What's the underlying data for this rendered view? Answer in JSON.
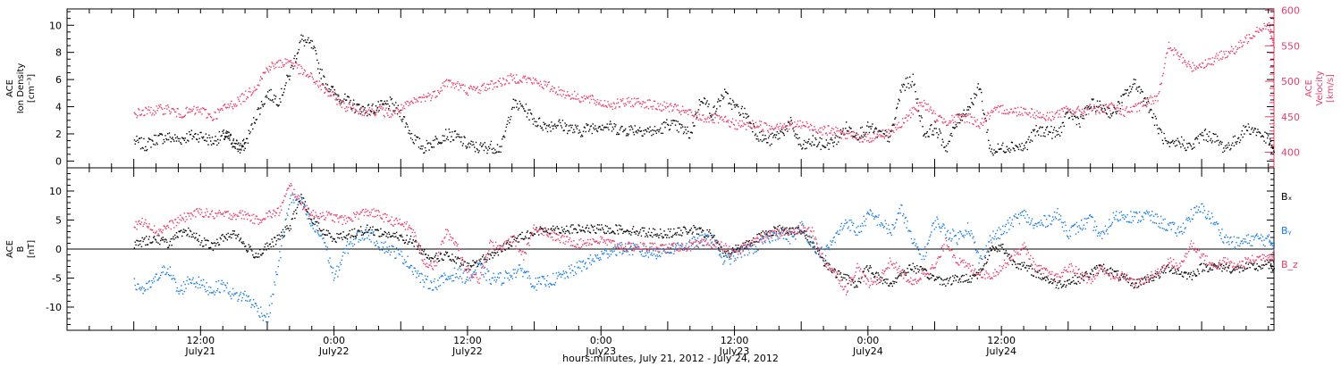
{
  "chart_data": [
    {
      "type": "scatter",
      "panel": "top",
      "ylabel_left": [
        "ACE",
        "Ion Density",
        "[cm⁻³]"
      ],
      "ylabel_right": [
        "ACE",
        "Velocity",
        "[km/s]"
      ],
      "ylim_left": [
        -0.5,
        11.2
      ],
      "ylim_right": [
        378,
        602
      ],
      "left_ticks": [
        "0",
        "2",
        "4",
        "6",
        "8",
        "10"
      ],
      "right_ticks": [
        "400",
        "450",
        "500",
        "550",
        "600"
      ],
      "colors": {
        "density": "#000000",
        "velocity": "#e8406a"
      },
      "series": [
        {
          "axis": "left",
          "color_key": "density",
          "x": [
            0,
            1,
            2,
            3,
            4,
            5,
            6,
            7,
            8,
            8.5,
            9,
            9.5,
            10,
            11,
            12,
            13,
            14,
            15,
            16,
            17,
            18,
            19,
            20,
            21,
            22,
            23,
            24,
            25,
            26,
            27,
            28,
            29,
            30,
            31,
            32,
            33,
            34,
            35,
            36,
            37,
            38,
            39,
            40,
            41,
            42,
            43,
            44,
            45,
            46,
            47,
            48,
            49,
            50,
            51,
            52,
            53,
            54,
            55,
            56,
            57,
            58,
            59,
            60,
            61,
            62,
            63,
            64,
            65,
            66,
            67,
            68,
            69,
            70,
            71,
            72,
            73,
            74,
            75,
            76,
            77,
            78,
            79,
            80,
            81,
            82,
            83,
            84,
            85,
            86,
            87,
            88,
            89,
            90,
            91,
            92,
            93,
            94,
            95,
            96,
            97,
            98,
            99,
            100,
            101,
            102,
            102.5
          ],
          "y": [
            1.5,
            1.2,
            1.7,
            1.8,
            1.6,
            1.9,
            1.9,
            1.5,
            1.9,
            1.8,
            1.3,
            1.0,
            1.3,
            3.5,
            5.0,
            4.5,
            6.5,
            9.0,
            8.5,
            6.0,
            5.0,
            4.5,
            4.0,
            3.8,
            4.0,
            4.3,
            3.5,
            1.8,
            1.0,
            1.5,
            2.0,
            1.8,
            1.2,
            1.0,
            1.1,
            1.0,
            4.2,
            4.0,
            3.0,
            2.6,
            2.8,
            2.5,
            2.2,
            2.5,
            2.7,
            2.5,
            2.3,
            2.4,
            2.3,
            2.2,
            2.8,
            2.5,
            2.0,
            4.8,
            3.5,
            5.0,
            4.0,
            3.5,
            2.0,
            1.5,
            2.0,
            2.8,
            1.0,
            1.5,
            1.2,
            1.5,
            2.5,
            2.0,
            2.5,
            2.0,
            1.8,
            5.5,
            6.0,
            2.0,
            2.5,
            1.0,
            3.0,
            4.0,
            5.5,
            0.7,
            1.0,
            1.2,
            1.0,
            2.2,
            2.3,
            2.0,
            3.5,
            3.0,
            4.2,
            4.0,
            3.5,
            4.8,
            5.8,
            4.5,
            2.5,
            1.0,
            1.5,
            1.0,
            2.0,
            1.8,
            1.0,
            1.5,
            2.5,
            2.2,
            1.5,
            0.5
          ]
        },
        {
          "axis": "right",
          "color_key": "velocity",
          "x": [
            0,
            1,
            2,
            3,
            4,
            5,
            6,
            7,
            8,
            9,
            10,
            11,
            12,
            13,
            14,
            15,
            16,
            17,
            18,
            19,
            20,
            21,
            22,
            23,
            24,
            25,
            26,
            27,
            28,
            29,
            30,
            31,
            32,
            33,
            34,
            35,
            36,
            37,
            38,
            39,
            40,
            41,
            42,
            43,
            44,
            45,
            46,
            47,
            48,
            49,
            50,
            51,
            52,
            53,
            54,
            55,
            56,
            57,
            58,
            59,
            60,
            61,
            62,
            63,
            64,
            65,
            66,
            67,
            68,
            69,
            70,
            71,
            72,
            73,
            74,
            75,
            76,
            77,
            78,
            79,
            80,
            81,
            82,
            83,
            84,
            85,
            86,
            87,
            88,
            89,
            90,
            91,
            92,
            93,
            94,
            95,
            96,
            97,
            98,
            99,
            100,
            101,
            102,
            102.5
          ],
          "y": [
            455,
            458,
            460,
            462,
            455,
            458,
            460,
            450,
            462,
            470,
            480,
            495,
            520,
            525,
            530,
            515,
            505,
            490,
            478,
            465,
            462,
            458,
            460,
            455,
            462,
            470,
            478,
            482,
            500,
            495,
            488,
            490,
            495,
            500,
            505,
            505,
            500,
            495,
            488,
            482,
            478,
            475,
            470,
            468,
            470,
            472,
            470,
            465,
            465,
            460,
            455,
            450,
            448,
            445,
            440,
            438,
            440,
            435,
            440,
            438,
            440,
            435,
            432,
            430,
            425,
            422,
            420,
            425,
            430,
            440,
            460,
            470,
            450,
            445,
            448,
            450,
            440,
            455,
            462,
            458,
            460,
            455,
            450,
            455,
            460,
            458,
            462,
            460,
            465,
            458,
            462,
            470,
            480,
            550,
            535,
            520,
            525,
            530,
            540,
            545,
            560,
            575,
            580,
            545
          ]
        }
      ]
    },
    {
      "type": "scatter",
      "panel": "bottom",
      "ylabel_left": [
        "ACE",
        "B",
        "[nT]"
      ],
      "ylim": [
        -14,
        14
      ],
      "left_ticks": [
        "-10",
        "-5",
        "0",
        "5",
        "10"
      ],
      "colors": {
        "Bx": "#000000",
        "By": "#1a7ee0",
        "Bz": "#e8406a"
      },
      "legend_labels": [
        "Bₓ",
        "Bᵧ",
        "B_z"
      ],
      "series": [
        {
          "name": "Bx",
          "color_key": "Bx",
          "x": [
            0,
            1,
            2,
            3,
            4,
            5,
            6,
            7,
            8,
            9,
            10,
            11,
            12,
            13,
            14,
            15,
            16,
            17,
            18,
            19,
            20,
            21,
            22,
            23,
            24,
            25,
            26,
            27,
            28,
            29,
            30,
            31,
            32,
            33,
            34,
            35,
            36,
            37,
            38,
            39,
            40,
            41,
            42,
            43,
            44,
            45,
            46,
            47,
            48,
            49,
            50,
            51,
            52,
            53,
            54,
            55,
            56,
            57,
            58,
            59,
            60,
            61,
            62,
            63,
            64,
            65,
            66,
            67,
            68,
            69,
            70,
            71,
            72,
            73,
            74,
            75,
            76,
            77,
            78,
            79,
            80,
            81,
            82,
            83,
            84,
            85,
            86,
            87,
            88,
            89,
            90,
            91,
            92,
            93,
            94,
            95,
            96,
            97,
            98,
            99,
            100,
            101,
            102,
            102.5
          ],
          "y": [
            1.0,
            1.5,
            2.0,
            1.0,
            2.5,
            3.0,
            1.5,
            0.5,
            2.0,
            3.0,
            0.5,
            -1.0,
            0.5,
            2.0,
            4.0,
            9.0,
            5.0,
            3.0,
            2.0,
            2.5,
            3.0,
            3.5,
            3.0,
            2.5,
            2.0,
            1.5,
            -0.5,
            -1.5,
            -1.0,
            -2.0,
            -3.0,
            -2.0,
            -1.0,
            0.0,
            1.5,
            2.5,
            3.0,
            3.5,
            3.5,
            3.5,
            3.5,
            3.5,
            3.5,
            3.5,
            3.5,
            3.2,
            3.0,
            2.8,
            2.8,
            3.0,
            3.5,
            3.0,
            2.5,
            -1.0,
            0.0,
            1.0,
            2.0,
            3.0,
            3.5,
            3.5,
            3.0,
            1.0,
            -2.0,
            -4.0,
            -5.0,
            -6.0,
            -3.0,
            -5.0,
            -6.0,
            -4.0,
            -3.0,
            -4.0,
            -5.0,
            -5.5,
            -5.0,
            -5.0,
            -4.0,
            0.0,
            0.5,
            -2.0,
            -3.0,
            -4.0,
            -5.0,
            -6.0,
            -5.5,
            -5.0,
            -4.0,
            -3.0,
            -4.0,
            -5.0,
            -6.0,
            -5.0,
            -4.5,
            -3.0,
            -4.0,
            -4.5,
            -3.0,
            -3.0,
            -3.0,
            -3.5,
            -3.0,
            -3.0,
            -2.5,
            -3.0
          ]
        },
        {
          "name": "By",
          "color_key": "By",
          "x": [
            0,
            1,
            2,
            3,
            4,
            5,
            6,
            7,
            8,
            9,
            10,
            11,
            12,
            13,
            14,
            15,
            16,
            17,
            18,
            19,
            20,
            21,
            22,
            23,
            24,
            25,
            26,
            27,
            28,
            29,
            30,
            31,
            32,
            33,
            34,
            35,
            36,
            37,
            38,
            39,
            40,
            41,
            42,
            43,
            44,
            45,
            46,
            47,
            48,
            49,
            50,
            51,
            52,
            53,
            54,
            55,
            56,
            57,
            58,
            59,
            60,
            61,
            62,
            63,
            64,
            65,
            66,
            67,
            68,
            69,
            70,
            71,
            72,
            73,
            74,
            75,
            76,
            77,
            78,
            79,
            80,
            81,
            82,
            83,
            84,
            85,
            86,
            87,
            88,
            89,
            90,
            91,
            92,
            93,
            94,
            95,
            96,
            97,
            98,
            99,
            100,
            101,
            102,
            102.5
          ],
          "y": [
            -6.0,
            -7.0,
            -5.0,
            -3.0,
            -7.5,
            -5.0,
            -6.0,
            -7.0,
            -6.0,
            -8.0,
            -8.0,
            -10.0,
            -12.0,
            -2.0,
            9.0,
            8.0,
            4.0,
            2.0,
            -5.0,
            0.0,
            2.0,
            3.0,
            1.0,
            0.0,
            -1.0,
            -3.0,
            -5.5,
            -6.0,
            -5.0,
            -4.0,
            -5.0,
            -3.0,
            -5.0,
            -5.0,
            -4.0,
            -3.5,
            -6.0,
            -5.5,
            -5.0,
            -4.0,
            -3.0,
            -2.0,
            -1.0,
            0.0,
            0.2,
            0.0,
            -0.5,
            -0.5,
            0.0,
            0.5,
            1.0,
            1.5,
            2.0,
            -2.0,
            -1.0,
            0.0,
            0.5,
            2.0,
            3.0,
            2.0,
            4.0,
            1.0,
            -1.0,
            2.0,
            5.0,
            3.0,
            6.0,
            5.0,
            3.0,
            7.0,
            1.0,
            -1.0,
            5.0,
            3.0,
            2.0,
            4.0,
            -2.0,
            2.0,
            3.0,
            5.0,
            6.0,
            4.0,
            5.0,
            6.0,
            3.0,
            4.0,
            5.0,
            2.0,
            5.5,
            6.0,
            5.5,
            6.0,
            5.0,
            4.0,
            3.0,
            6.0,
            7.0,
            5.0,
            2.0,
            1.0,
            1.5,
            2.0,
            1.5,
            1.0
          ]
        },
        {
          "name": "Bz",
          "color_key": "Bz",
          "x": [
            0,
            1,
            2,
            3,
            4,
            5,
            6,
            7,
            8,
            9,
            10,
            11,
            12,
            13,
            14,
            15,
            16,
            17,
            18,
            19,
            20,
            21,
            22,
            23,
            24,
            25,
            26,
            27,
            28,
            29,
            30,
            31,
            32,
            33,
            34,
            35,
            36,
            37,
            38,
            39,
            40,
            41,
            42,
            43,
            44,
            45,
            46,
            47,
            48,
            49,
            50,
            51,
            52,
            53,
            54,
            55,
            56,
            57,
            58,
            59,
            60,
            61,
            62,
            63,
            64,
            65,
            66,
            67,
            68,
            69,
            70,
            71,
            72,
            73,
            74,
            75,
            76,
            77,
            78,
            79,
            80,
            81,
            82,
            83,
            84,
            85,
            86,
            87,
            88,
            89,
            90,
            91,
            92,
            93,
            94,
            95,
            96,
            97,
            98,
            99,
            100,
            101,
            102,
            102.5
          ],
          "y": [
            4.0,
            5.0,
            3.0,
            4.0,
            5.0,
            6.0,
            6.5,
            6.0,
            6.0,
            6.0,
            6.0,
            5.0,
            6.0,
            6.5,
            11.0,
            8.0,
            6.0,
            6.0,
            5.5,
            5.0,
            6.0,
            6.5,
            6.0,
            5.0,
            4.5,
            3.5,
            -2.0,
            -3.0,
            3.0,
            1.0,
            -4.0,
            -5.0,
            1.0,
            0.0,
            2.0,
            -1.0,
            4.0,
            3.0,
            2.0,
            1.5,
            1.0,
            1.5,
            1.5,
            1.0,
            0.5,
            0.5,
            0.5,
            0.5,
            0.2,
            0.5,
            0.5,
            1.0,
            1.0,
            0.5,
            -1.0,
            1.0,
            1.5,
            2.5,
            3.0,
            3.0,
            3.5,
            3.0,
            -2.0,
            -4.0,
            -7.0,
            -3.0,
            -6.0,
            -5.0,
            -2.0,
            -4.0,
            -6.0,
            -4.0,
            -3.0,
            1.5,
            -2.0,
            -3.0,
            -4.0,
            -4.5,
            -3.0,
            -1.0,
            0.5,
            -3.0,
            -4.0,
            -5.0,
            -3.0,
            -4.0,
            -5.5,
            -3.0,
            -5.0,
            -4.5,
            -6.0,
            -5.0,
            -4.0,
            -2.0,
            -3.0,
            1.0,
            -1.0,
            -3.0,
            -2.0,
            -3.0,
            -2.0,
            -1.5,
            -1.0,
            -1.0
          ]
        }
      ]
    }
  ],
  "x_axis": {
    "hours_range": [
      -6,
      102.5
    ],
    "tick_times": [
      "12:00",
      "0:00",
      "12:00",
      "0:00",
      "12:00",
      "0:00",
      "12:00"
    ],
    "tick_dates": [
      "July21",
      "July22",
      "July22",
      "July23",
      "July23",
      "July24",
      "July24"
    ],
    "xlabel": "hours:minutes, July 21, 2012 - July 24, 2012"
  }
}
